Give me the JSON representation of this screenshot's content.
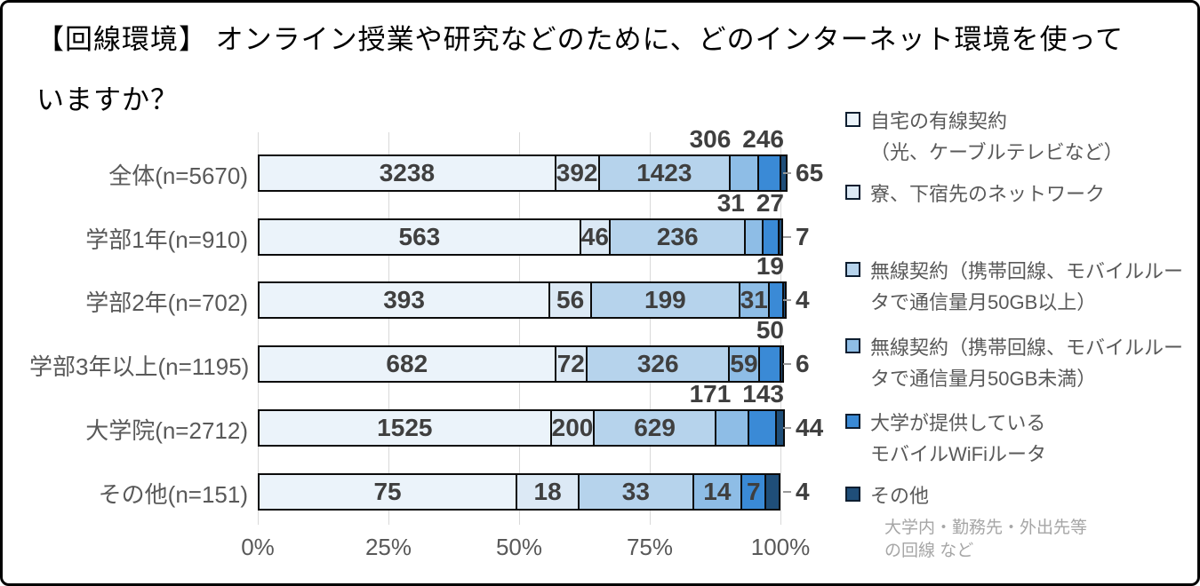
{
  "title": {
    "line1": "【回線環境】 オンライン授業や研究などのために、どのインターネット環境を使って",
    "line2": "いますか？"
  },
  "chart_data": {
    "type": "bar",
    "stacked": true,
    "orientation": "horizontal",
    "title": "【回線環境】 オンライン授業や研究などのために、どのインターネット環境を使っていますか？",
    "x_axis": {
      "tick_labels": [
        "0%",
        "25%",
        "50%",
        "75%",
        "100%"
      ],
      "range_percent": [
        0,
        100
      ],
      "grid": true
    },
    "series_names": [
      "自宅の有線契約（光、ケーブルテレビなど）",
      "寮、下宿先のネットワーク",
      "無線契約（携帯回線、モバイルルータで通信量月50GB以上）",
      "無線契約（携帯回線、モバイルルータで通信量月50GB未満）",
      "大学が提供しているモバイルWiFiルータ",
      "その他"
    ],
    "series_colors": [
      "#ebf3fa",
      "#dce9f5",
      "#b6d3ec",
      "#8ebde6",
      "#3a8ad6",
      "#1f4e79"
    ],
    "categories": [
      "全体(n=5670)",
      "学部1年(n=910)",
      "学部2年(n=702)",
      "学部3年以上(n=1195)",
      "大学院(n=2712)",
      "その他(n=151)"
    ],
    "rows": [
      {
        "category": "全体(n=5670)",
        "n": 5670,
        "values": [
          3238,
          392,
          1423,
          306,
          246,
          65
        ],
        "label_pos": [
          "in",
          "in",
          "in",
          "above",
          "above",
          "right"
        ]
      },
      {
        "category": "学部1年(n=910)",
        "n": 910,
        "values": [
          563,
          46,
          236,
          31,
          27,
          7
        ],
        "label_pos": [
          "in",
          "in",
          "in",
          "above",
          "above",
          "right"
        ]
      },
      {
        "category": "学部2年(n=702)",
        "n": 702,
        "values": [
          393,
          56,
          199,
          31,
          19,
          4
        ],
        "label_pos": [
          "in",
          "in",
          "in",
          "in",
          "above",
          "right"
        ]
      },
      {
        "category": "学部3年以上(n=1195)",
        "n": 1195,
        "values": [
          682,
          72,
          326,
          59,
          50,
          6
        ],
        "label_pos": [
          "in",
          "in",
          "in",
          "in",
          "above",
          "right"
        ]
      },
      {
        "category": "大学院(n=2712)",
        "n": 2712,
        "values": [
          1525,
          200,
          629,
          171,
          143,
          44
        ],
        "label_pos": [
          "in",
          "in",
          "in",
          "above",
          "above",
          "right"
        ]
      },
      {
        "category": "その他(n=151)",
        "n": 151,
        "values": [
          75,
          18,
          33,
          14,
          7,
          4
        ],
        "label_pos": [
          "in",
          "in",
          "in",
          "in",
          "in",
          "right"
        ]
      }
    ]
  },
  "legend": {
    "items": [
      {
        "name": "自宅の有線契約（光、ケーブルテレビなど）",
        "color": "#ebf3fa",
        "lines": [
          "自宅の有線契約",
          "（光、ケーブルテレビなど）"
        ]
      },
      {
        "name": "寮、下宿先のネットワーク",
        "color": "#dce9f5",
        "lines": [
          "寮、下宿先のネットワーク"
        ]
      },
      {
        "name": "無線契約（携帯回線、モバイルルータで通信量月50GB以上）",
        "color": "#b6d3ec",
        "lines": [
          "無線契約（携帯回線、モバイルルー",
          "タで通信量月50GB以上）"
        ]
      },
      {
        "name": "無線契約（携帯回線、モバイルルータで通信量月50GB未満）",
        "color": "#8ebde6",
        "lines": [
          "無線契約（携帯回線、モバイルルー",
          "タで通信量月50GB未満）"
        ]
      },
      {
        "name": "大学が提供しているモバイルWiFiルータ",
        "color": "#3a8ad6",
        "lines": [
          "大学が提供している",
          "モバイルWiFiルータ"
        ]
      },
      {
        "name": "その他",
        "color": "#1f4e79",
        "lines": [
          "その他"
        ],
        "sub": [
          "大学内・勤務先・外出先等",
          "の回線 など"
        ]
      }
    ]
  }
}
